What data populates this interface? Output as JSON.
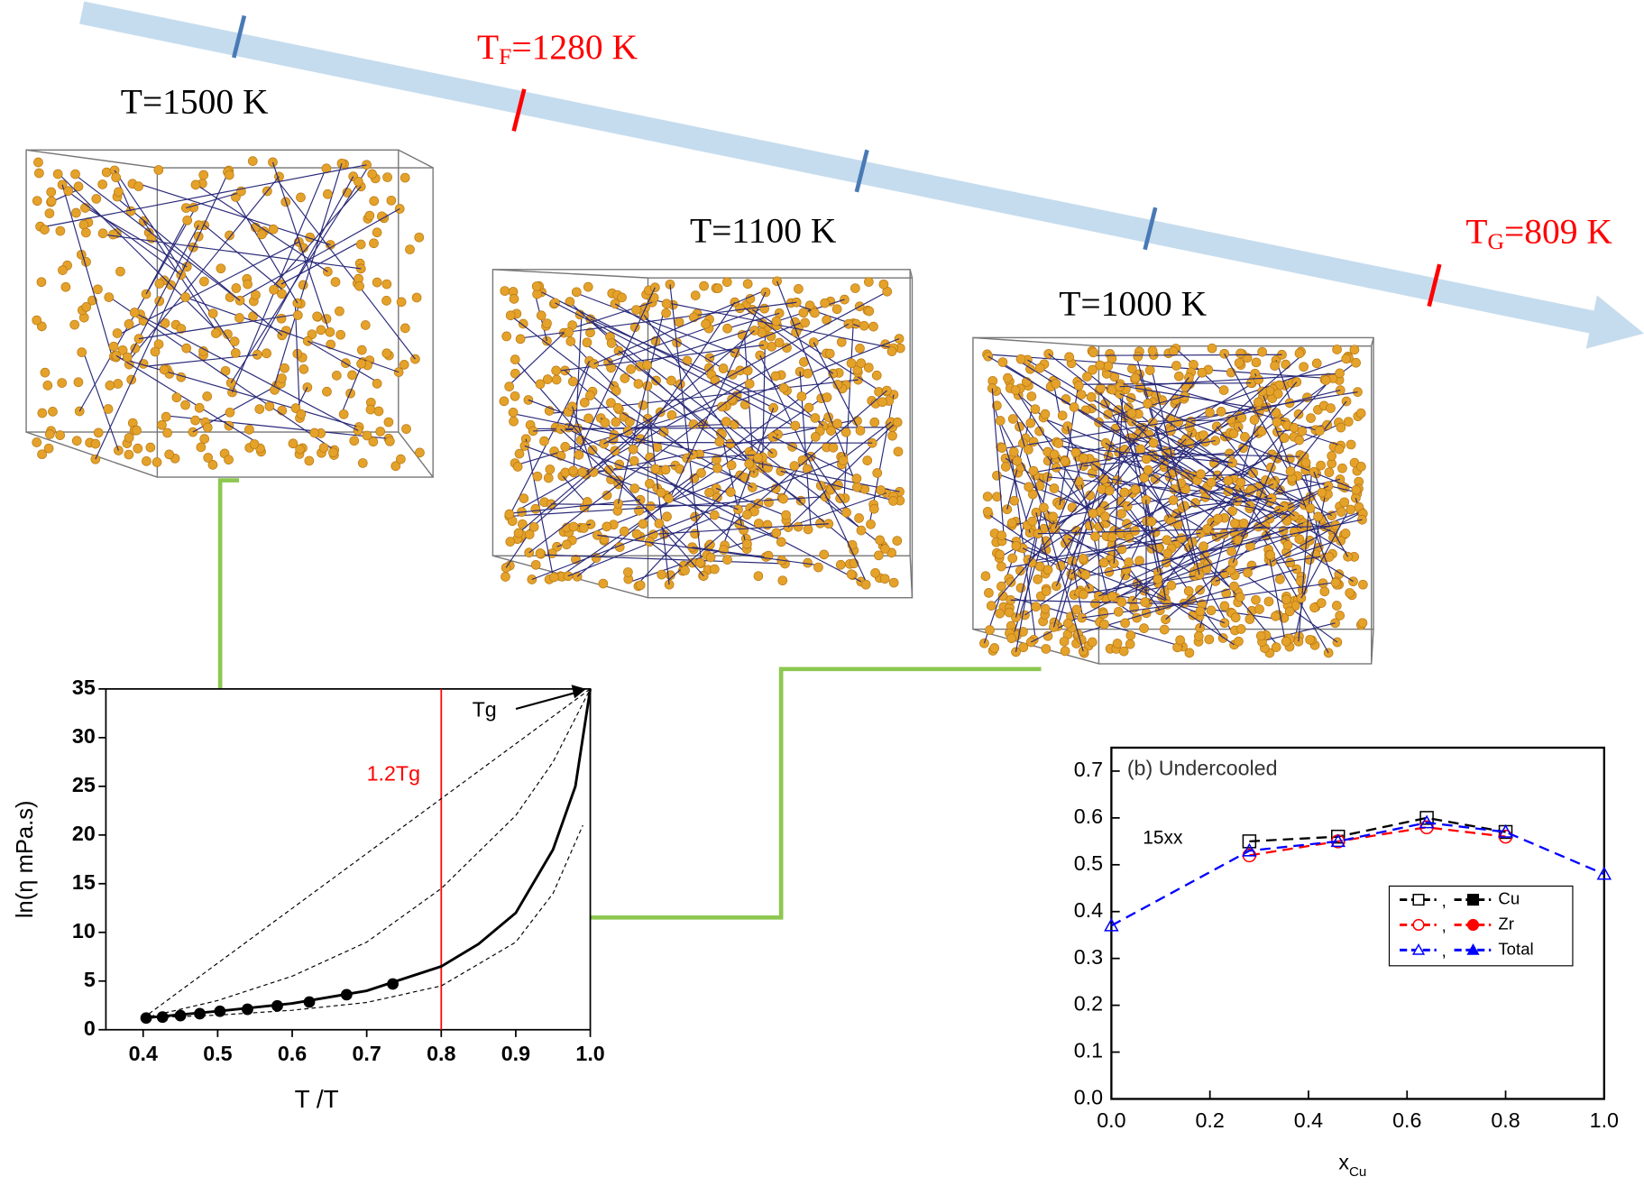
{
  "timeline": {
    "labels": [
      {
        "text": "T=1500 K"
      },
      {
        "symbol": "T",
        "subscript": "F",
        "text": "=1280 K"
      },
      {
        "text": "T=1100 K"
      },
      {
        "text": "T=1000 K"
      },
      {
        "symbol": "T",
        "subscript": "G",
        "text": "=809 K"
      }
    ]
  },
  "chart_data": [
    {
      "type": "line",
      "y_label": "ln(η mPa.s)",
      "x_label": "T /T",
      "xlim": [
        0.35,
        1.0
      ],
      "xticks": [
        0.4,
        0.5,
        0.6,
        0.7,
        0.8,
        0.9,
        {
          "value": 1,
          "label": "1.0"
        }
      ],
      "ylim": [
        0,
        35
      ],
      "yticks": [
        0,
        5,
        10,
        15,
        20,
        25,
        30,
        35
      ],
      "series": [
        {
          "color": "#000000",
          "marker": "circle",
          "x": [
            0.404,
            0.426,
            0.45,
            0.476,
            0.503,
            0.54,
            0.58,
            0.623,
            0.673,
            0.735
          ],
          "values": [
            1.2,
            1.3,
            1.45,
            1.65,
            1.9,
            2.1,
            2.45,
            2.85,
            3.6,
            4.7
          ]
        },
        {
          "color": "#000000",
          "line_width": 2.5,
          "x": [
            0.4,
            0.5,
            0.6,
            0.7,
            0.8,
            0.85,
            0.9,
            0.95,
            0.98,
            1.0
          ],
          "values": [
            1.2,
            1.9,
            2.7,
            4.0,
            6.5,
            8.8,
            12,
            18.5,
            25,
            35
          ]
        },
        {
          "color": "#000000",
          "line_width": 1,
          "dashed": true,
          "x": [
            0.4,
            1.0
          ],
          "values": [
            1.2,
            35
          ]
        },
        {
          "color": "#000000",
          "line_width": 1,
          "dashed": true,
          "x": [
            0.4,
            0.5,
            0.6,
            0.7,
            0.8,
            0.9,
            0.95,
            1.0
          ],
          "values": [
            1.2,
            3,
            5.5,
            9,
            14.5,
            22,
            27.5,
            35
          ]
        },
        {
          "color": "#000000",
          "line_width": 1,
          "dashed": true,
          "x": [
            0.4,
            0.5,
            0.6,
            0.7,
            0.8,
            0.9,
            0.95,
            0.99
          ],
          "values": [
            1.2,
            1.5,
            2,
            2.8,
            4.5,
            9,
            14,
            21
          ]
        }
      ],
      "reference_line": {
        "x": 0.8,
        "color": "#ff0000",
        "label": "1.2Tg"
      },
      "annotations": [
        {
          "text": "Tg",
          "x": 1.0,
          "y": 35
        }
      ]
    },
    {
      "type": "line",
      "annotation": "(b) Undercooled",
      "label": "15xx",
      "x_label": "x",
      "x_label_sub": "Cu",
      "xlim": [
        0,
        1
      ],
      "xticks": [
        {
          "value": 0,
          "label": "0.0"
        },
        0.2,
        0.4,
        0.6,
        0.8,
        {
          "value": 1,
          "label": "1.0"
        }
      ],
      "ylim": [
        0,
        0.75
      ],
      "yticks": [
        {
          "value": 0,
          "label": "0.0"
        },
        0.1,
        0.2,
        0.3,
        0.4,
        0.5,
        0.6,
        0.7
      ],
      "legend": "right",
      "legend_separator": ",",
      "series": [
        {
          "name": "Cu",
          "color": "#000000",
          "marker": "square",
          "x": [
            0.28,
            0.46,
            0.64,
            0.8
          ],
          "values": [
            0.55,
            0.56,
            0.6,
            0.57
          ]
        },
        {
          "name": "Zr",
          "color": "#ff0000",
          "marker": "circle",
          "x": [
            0.28,
            0.46,
            0.64,
            0.8
          ],
          "values": [
            0.52,
            0.55,
            0.58,
            0.56
          ]
        },
        {
          "name": "Total",
          "color": "#0000ff",
          "marker": "triangle",
          "x": [
            0,
            0.28,
            0.46,
            0.64,
            0.8,
            1.0
          ],
          "values": [
            0.37,
            0.53,
            0.55,
            0.59,
            0.57,
            0.48
          ]
        }
      ]
    }
  ]
}
